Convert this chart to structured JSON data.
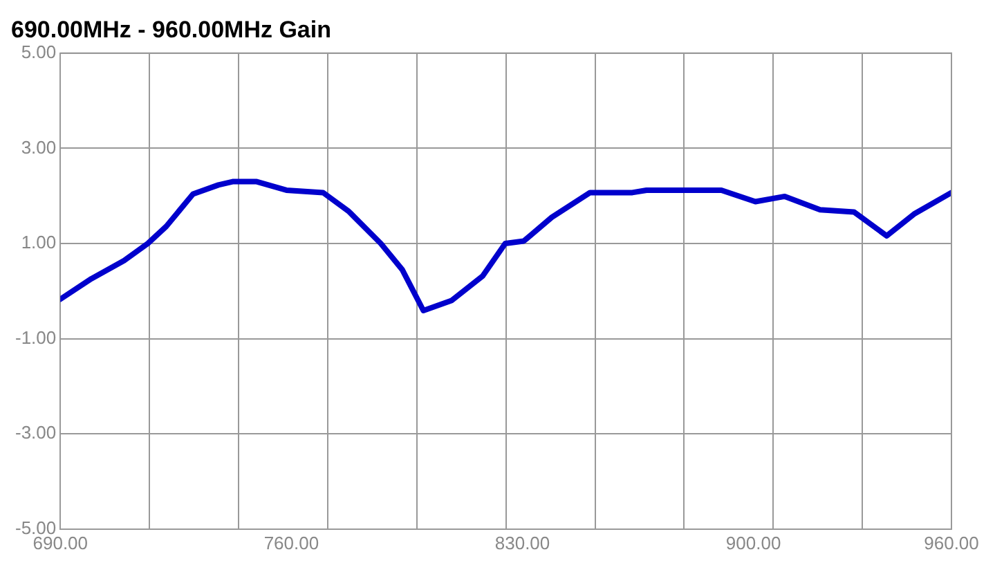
{
  "chart_data": {
    "type": "line",
    "title": "690.00MHz - 960.00MHz Gain",
    "x": [
      690,
      699.4,
      709.3,
      716.5,
      722.1,
      730.2,
      737.9,
      742.2,
      749.5,
      758.5,
      769.6,
      777.3,
      787.1,
      793.6,
      800,
      808.5,
      818,
      824.8,
      830.4,
      838.9,
      850.5,
      863.3,
      867.6,
      890.3,
      900.6,
      909.5,
      920.2,
      930.5,
      940.4,
      948.9,
      960
    ],
    "series": [
      {
        "color": "#0000cc",
        "values": [
          -0.17,
          0.26,
          0.64,
          1.0,
          1.36,
          2.04,
          2.23,
          2.3,
          2.3,
          2.12,
          2.07,
          1.68,
          1.0,
          0.45,
          -0.41,
          -0.2,
          0.32,
          1.0,
          1.05,
          1.55,
          2.07,
          2.07,
          2.12,
          2.12,
          1.88,
          1.99,
          1.71,
          1.66,
          1.16,
          1.63,
          2.07
        ]
      }
    ],
    "xlim": [
      690,
      960
    ],
    "xticks": [
      {
        "value": 690,
        "label": "690.00"
      },
      {
        "value": 717,
        "label": null
      },
      {
        "value": 744,
        "label": null
      },
      {
        "value": 760,
        "label": "760.00"
      },
      {
        "value": 771,
        "label": null
      },
      {
        "value": 798,
        "label": null
      },
      {
        "value": 825,
        "label": null
      },
      {
        "value": 830,
        "label": "830.00"
      },
      {
        "value": 852,
        "label": null
      },
      {
        "value": 879,
        "label": null
      },
      {
        "value": 900,
        "label": "900.00"
      },
      {
        "value": 906,
        "label": null
      },
      {
        "value": 933,
        "label": null
      },
      {
        "value": 960,
        "label": "960.00"
      }
    ],
    "ylim": [
      -5,
      5
    ],
    "yticks": [
      {
        "value": -5,
        "label": "-5.00"
      },
      {
        "value": -3,
        "label": "-3.00"
      },
      {
        "value": -1,
        "label": "-1.00"
      },
      {
        "value": 1,
        "label": "1.00"
      },
      {
        "value": 3,
        "label": "3.00"
      },
      {
        "value": 5,
        "label": "5.00"
      }
    ],
    "grid": true,
    "marker": "none",
    "line_style": "solid",
    "legend": false
  }
}
